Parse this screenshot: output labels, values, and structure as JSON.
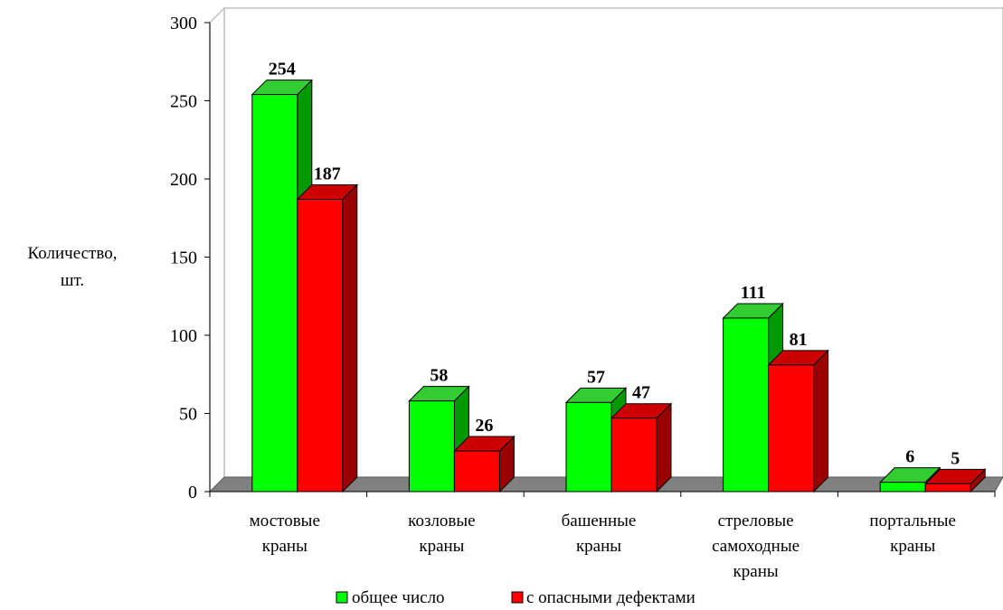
{
  "chart_data": {
    "type": "bar",
    "ylabel_lines": [
      "Количество,",
      "шт."
    ],
    "ylim": [
      0,
      300
    ],
    "yticks": [
      0,
      50,
      100,
      150,
      200,
      250,
      300
    ],
    "categories": [
      [
        "мостовые",
        "краны"
      ],
      [
        "козловые",
        "краны"
      ],
      [
        "башенные",
        "краны"
      ],
      [
        "стреловые",
        "самоходные",
        "краны"
      ],
      [
        "портальные",
        "краны"
      ]
    ],
    "series": [
      {
        "name": "общее число",
        "color": "#00ff00",
        "top_color": "#33cc33",
        "side_color": "#009900",
        "values": [
          254,
          58,
          57,
          111,
          6
        ]
      },
      {
        "name": "с опасными дефектами",
        "color": "#ff0000",
        "top_color": "#cc0000",
        "side_color": "#990000",
        "values": [
          187,
          26,
          47,
          81,
          5
        ]
      }
    ],
    "legend_position": "bottom",
    "gridlines": false
  }
}
